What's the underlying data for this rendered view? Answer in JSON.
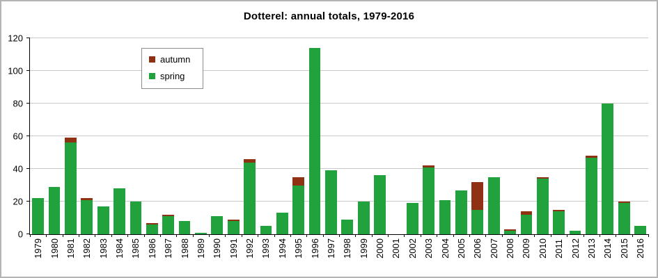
{
  "chart_data": {
    "type": "bar",
    "stacked": true,
    "title": "Dotterel: annual totals, 1979-2016",
    "xlabel": "",
    "ylabel": "",
    "ylim": [
      0,
      120
    ],
    "yticks": [
      0,
      20,
      40,
      60,
      80,
      100,
      120
    ],
    "grid": "horizontal",
    "legend_position": "top-left-inside",
    "categories": [
      "1979",
      "1980",
      "1981",
      "1982",
      "1983",
      "1984",
      "1985",
      "1986",
      "1987",
      "1988",
      "1989",
      "1990",
      "1991",
      "1992",
      "1993",
      "1994",
      "1995",
      "1996",
      "1997",
      "1998",
      "1999",
      "2000",
      "2001",
      "2002",
      "2003",
      "2004",
      "2005",
      "2006",
      "2007",
      "2008",
      "2009",
      "2010",
      "2011",
      "2012",
      "2013",
      "2014",
      "2015",
      "2016"
    ],
    "series": [
      {
        "name": "autumn",
        "color": "#8f3213",
        "values": [
          0,
          0,
          3,
          1,
          0,
          0,
          0,
          1,
          1,
          0,
          0,
          0,
          1,
          2,
          0,
          0,
          5,
          0,
          0,
          0,
          0,
          0,
          0,
          0,
          1,
          0,
          0,
          17,
          0,
          1,
          2,
          1,
          1,
          0,
          1,
          0,
          1,
          0
        ]
      },
      {
        "name": "spring",
        "color": "#22a23c",
        "values": [
          22,
          29,
          56,
          21,
          17,
          28,
          20,
          6,
          11,
          8,
          1,
          11,
          8,
          44,
          5,
          13,
          30,
          114,
          39,
          9,
          20,
          36,
          0,
          19,
          41,
          21,
          27,
          15,
          35,
          2,
          12,
          34,
          14,
          2,
          47,
          80,
          19,
          5
        ]
      }
    ]
  },
  "colors": {
    "gridline": "#c9c9c9",
    "axis": "#000000",
    "frame_border": "#b4b4b4"
  }
}
